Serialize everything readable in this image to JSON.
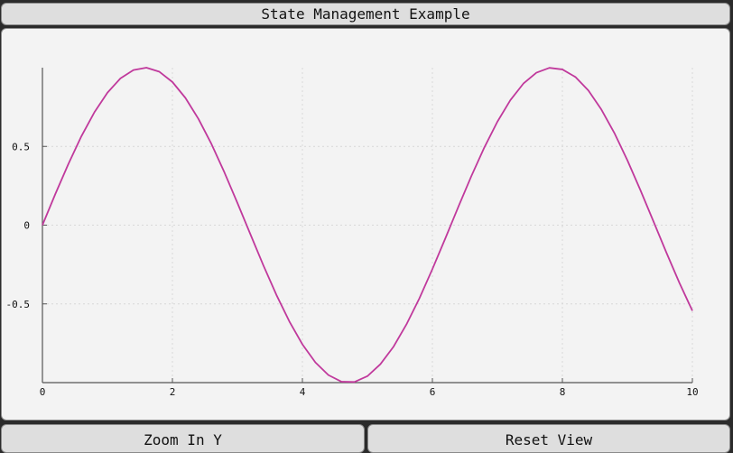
{
  "window": {
    "title": "State Management Example"
  },
  "buttons": {
    "zoom_label": "Zoom In Y",
    "reset_label": "Reset View"
  },
  "colors": {
    "line": "#c0399c",
    "axis": "#555555",
    "grid": "#d8d8d8"
  },
  "chart_data": {
    "type": "line",
    "title": "",
    "xlabel": "",
    "ylabel": "",
    "xlim": [
      0,
      10
    ],
    "ylim": [
      -1,
      1
    ],
    "xticks": [
      0,
      2,
      4,
      6,
      8,
      10
    ],
    "xtick_labels": [
      "0",
      "2",
      "4",
      "6",
      "8",
      "10"
    ],
    "yticks": [
      -0.5,
      0,
      0.5
    ],
    "ytick_labels": [
      "-0.5",
      "0",
      "0.5"
    ],
    "grid": true,
    "series": [
      {
        "x": [
          0,
          0.2,
          0.4,
          0.6,
          0.8,
          1.0,
          1.2,
          1.4,
          1.6,
          1.8,
          2.0,
          2.2,
          2.4,
          2.6,
          2.8,
          3.0,
          3.2,
          3.4,
          3.6,
          3.8,
          4.0,
          4.2,
          4.4,
          4.6,
          4.8,
          5.0,
          5.2,
          5.4,
          5.6,
          5.8,
          6.0,
          6.2,
          6.4,
          6.6,
          6.8,
          7.0,
          7.2,
          7.4,
          7.6,
          7.8,
          8.0,
          8.2,
          8.4,
          8.6,
          8.8,
          9.0,
          9.2,
          9.4,
          9.6,
          9.8,
          10.0
        ],
        "y": [
          0,
          0.199,
          0.389,
          0.565,
          0.717,
          0.841,
          0.932,
          0.985,
          1.0,
          0.974,
          0.909,
          0.808,
          0.675,
          0.516,
          0.335,
          0.141,
          -0.058,
          -0.256,
          -0.443,
          -0.612,
          -0.757,
          -0.872,
          -0.952,
          -0.994,
          -0.996,
          -0.959,
          -0.883,
          -0.773,
          -0.631,
          -0.465,
          -0.279,
          -0.083,
          0.117,
          0.312,
          0.494,
          0.657,
          0.794,
          0.899,
          0.968,
          0.999,
          0.989,
          0.941,
          0.855,
          0.734,
          0.585,
          0.412,
          0.223,
          0.025,
          -0.174,
          -0.366,
          -0.544
        ]
      }
    ]
  }
}
